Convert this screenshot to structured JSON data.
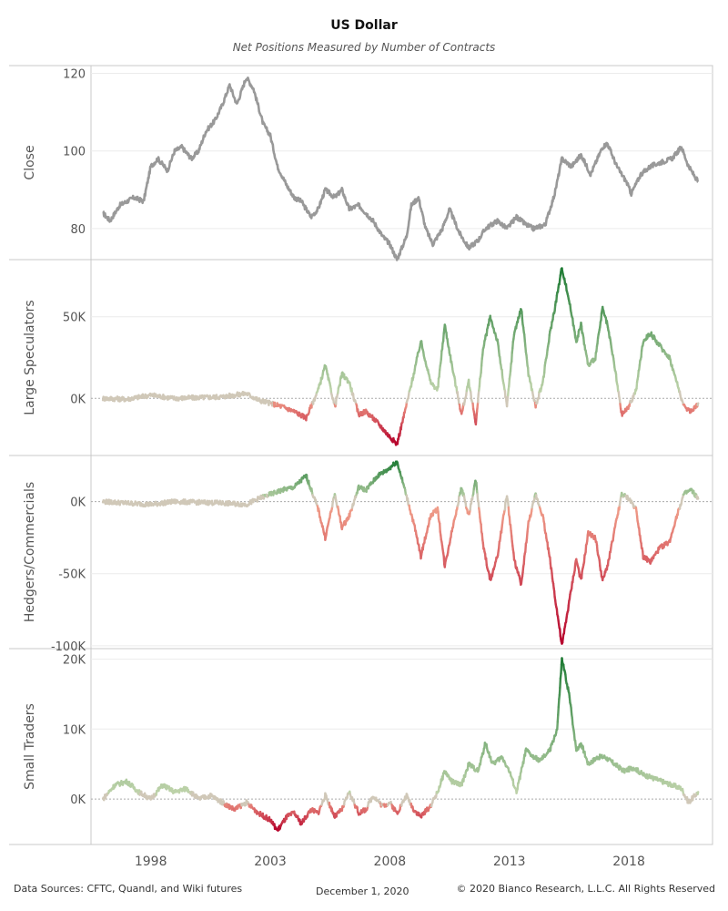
{
  "title": "US Dollar",
  "subtitle": "Net Positions Measured by Number of Contracts",
  "footer": {
    "sources": "Data Sources: CFTC, Quandl, and Wiki futures",
    "date": "December 1, 2020",
    "copyright": "© 2020 Bianco Research, L.L.C. All Rights Reserved"
  },
  "colors": {
    "close_line": "#999999",
    "positive_light": "#c6d7b0",
    "positive_dark": "#1e7b34",
    "negative_light": "#f2a48d",
    "negative_dark": "#b5002a",
    "neutral": "#d0c8b8"
  },
  "chart_data": {
    "type": "line",
    "x_ticks": [
      "1998",
      "2003",
      "2008",
      "2013",
      "2018"
    ],
    "x_range": [
      1995.5,
      2021.5
    ],
    "panels": [
      {
        "ylabel": "Close",
        "ylim": [
          72,
          122
        ],
        "yticks": [
          {
            "v": 80,
            "label": "80"
          },
          {
            "v": 100,
            "label": "100"
          },
          {
            "v": 120,
            "label": "120"
          }
        ],
        "colormode": "solid",
        "series": [
          [
            1996.0,
            84
          ],
          [
            1996.3,
            82
          ],
          [
            1996.7,
            86
          ],
          [
            1997.0,
            87
          ],
          [
            1997.3,
            88
          ],
          [
            1997.7,
            87
          ],
          [
            1998.0,
            96
          ],
          [
            1998.3,
            98
          ],
          [
            1998.7,
            95
          ],
          [
            1999.0,
            100
          ],
          [
            1999.3,
            101
          ],
          [
            1999.7,
            98
          ],
          [
            2000.0,
            100
          ],
          [
            2000.3,
            105
          ],
          [
            2000.7,
            108
          ],
          [
            2001.0,
            112
          ],
          [
            2001.3,
            117
          ],
          [
            2001.6,
            112
          ],
          [
            2002.0,
            119
          ],
          [
            2002.3,
            116
          ],
          [
            2002.7,
            107
          ],
          [
            2003.0,
            104
          ],
          [
            2003.3,
            96
          ],
          [
            2003.7,
            91
          ],
          [
            2004.0,
            88
          ],
          [
            2004.3,
            87
          ],
          [
            2004.7,
            83
          ],
          [
            2005.0,
            85
          ],
          [
            2005.3,
            90
          ],
          [
            2005.7,
            88
          ],
          [
            2006.0,
            90
          ],
          [
            2006.3,
            85
          ],
          [
            2006.7,
            86
          ],
          [
            2007.0,
            84
          ],
          [
            2007.3,
            82
          ],
          [
            2007.7,
            78
          ],
          [
            2008.0,
            76
          ],
          [
            2008.3,
            72
          ],
          [
            2008.7,
            78
          ],
          [
            2008.9,
            86
          ],
          [
            2009.2,
            88
          ],
          [
            2009.5,
            80
          ],
          [
            2009.8,
            76
          ],
          [
            2010.2,
            80
          ],
          [
            2010.5,
            85
          ],
          [
            2010.9,
            79
          ],
          [
            2011.3,
            75
          ],
          [
            2011.7,
            77
          ],
          [
            2012.0,
            80
          ],
          [
            2012.5,
            82
          ],
          [
            2012.9,
            80
          ],
          [
            2013.3,
            83
          ],
          [
            2013.7,
            81
          ],
          [
            2014.0,
            80
          ],
          [
            2014.5,
            81
          ],
          [
            2014.9,
            89
          ],
          [
            2015.2,
            98
          ],
          [
            2015.6,
            96
          ],
          [
            2016.0,
            99
          ],
          [
            2016.4,
            94
          ],
          [
            2016.9,
            101
          ],
          [
            2017.1,
            102
          ],
          [
            2017.5,
            96
          ],
          [
            2017.9,
            92
          ],
          [
            2018.1,
            89
          ],
          [
            2018.5,
            94
          ],
          [
            2018.9,
            96
          ],
          [
            2019.3,
            97
          ],
          [
            2019.8,
            98
          ],
          [
            2020.2,
            101
          ],
          [
            2020.5,
            96
          ],
          [
            2020.9,
            92
          ]
        ]
      },
      {
        "ylabel": "Large Speculators",
        "ylim": [
          -35000,
          85000
        ],
        "yticks": [
          {
            "v": 0,
            "label": "0K"
          },
          {
            "v": 50000,
            "label": "50K"
          }
        ],
        "colormode": "diverging",
        "series": [
          [
            1996.0,
            0
          ],
          [
            1997.0,
            -500
          ],
          [
            1998.0,
            2000
          ],
          [
            1999.0,
            0
          ],
          [
            2000.0,
            500
          ],
          [
            2001.0,
            1000
          ],
          [
            2002.0,
            3000
          ],
          [
            2002.5,
            -1000
          ],
          [
            2003.0,
            -3000
          ],
          [
            2003.5,
            -5000
          ],
          [
            2004.0,
            -8000
          ],
          [
            2004.5,
            -12000
          ],
          [
            2005.0,
            5000
          ],
          [
            2005.3,
            20000
          ],
          [
            2005.7,
            -5000
          ],
          [
            2006.0,
            15000
          ],
          [
            2006.3,
            10000
          ],
          [
            2006.7,
            -10000
          ],
          [
            2007.0,
            -8000
          ],
          [
            2007.5,
            -15000
          ],
          [
            2007.9,
            -22000
          ],
          [
            2008.3,
            -28000
          ],
          [
            2008.6,
            -10000
          ],
          [
            2009.0,
            15000
          ],
          [
            2009.3,
            35000
          ],
          [
            2009.7,
            10000
          ],
          [
            2010.0,
            5000
          ],
          [
            2010.3,
            45000
          ],
          [
            2010.6,
            20000
          ],
          [
            2011.0,
            -10000
          ],
          [
            2011.3,
            10000
          ],
          [
            2011.6,
            -15000
          ],
          [
            2011.9,
            30000
          ],
          [
            2012.2,
            50000
          ],
          [
            2012.5,
            35000
          ],
          [
            2012.9,
            -5000
          ],
          [
            2013.2,
            40000
          ],
          [
            2013.5,
            55000
          ],
          [
            2013.8,
            15000
          ],
          [
            2014.1,
            -5000
          ],
          [
            2014.4,
            10000
          ],
          [
            2014.7,
            40000
          ],
          [
            2014.9,
            55000
          ],
          [
            2015.2,
            80000
          ],
          [
            2015.5,
            60000
          ],
          [
            2015.8,
            35000
          ],
          [
            2016.0,
            45000
          ],
          [
            2016.3,
            20000
          ],
          [
            2016.6,
            25000
          ],
          [
            2016.9,
            55000
          ],
          [
            2017.1,
            45000
          ],
          [
            2017.4,
            20000
          ],
          [
            2017.7,
            -10000
          ],
          [
            2018.0,
            -5000
          ],
          [
            2018.3,
            5000
          ],
          [
            2018.6,
            35000
          ],
          [
            2018.9,
            40000
          ],
          [
            2019.3,
            32000
          ],
          [
            2019.7,
            25000
          ],
          [
            2020.0,
            10000
          ],
          [
            2020.3,
            -5000
          ],
          [
            2020.6,
            -8000
          ],
          [
            2020.9,
            -3000
          ]
        ]
      },
      {
        "ylabel": "Hedgers/Commercials",
        "ylim": [
          -102000,
          32000
        ],
        "yticks": [
          {
            "v": -100000,
            "label": "-100K"
          },
          {
            "v": -50000,
            "label": "-50K"
          },
          {
            "v": 0,
            "label": "0K"
          }
        ],
        "colormode": "diverging",
        "series": [
          [
            1996.0,
            0
          ],
          [
            1997.0,
            -1000
          ],
          [
            1998.0,
            -2000
          ],
          [
            1999.0,
            0
          ],
          [
            2000.0,
            -500
          ],
          [
            2001.0,
            -1000
          ],
          [
            2002.0,
            -2000
          ],
          [
            2002.5,
            2000
          ],
          [
            2003.0,
            5000
          ],
          [
            2003.5,
            8000
          ],
          [
            2004.0,
            10000
          ],
          [
            2004.5,
            18000
          ],
          [
            2005.0,
            -5000
          ],
          [
            2005.3,
            -25000
          ],
          [
            2005.7,
            5000
          ],
          [
            2006.0,
            -18000
          ],
          [
            2006.3,
            -10000
          ],
          [
            2006.7,
            10000
          ],
          [
            2007.0,
            8000
          ],
          [
            2007.5,
            18000
          ],
          [
            2007.9,
            22000
          ],
          [
            2008.3,
            28000
          ],
          [
            2008.6,
            10000
          ],
          [
            2009.0,
            -15000
          ],
          [
            2009.3,
            -38000
          ],
          [
            2009.7,
            -10000
          ],
          [
            2010.0,
            -5000
          ],
          [
            2010.3,
            -45000
          ],
          [
            2010.6,
            -20000
          ],
          [
            2011.0,
            10000
          ],
          [
            2011.3,
            -10000
          ],
          [
            2011.6,
            15000
          ],
          [
            2011.9,
            -30000
          ],
          [
            2012.2,
            -55000
          ],
          [
            2012.5,
            -38000
          ],
          [
            2012.9,
            5000
          ],
          [
            2013.2,
            -40000
          ],
          [
            2013.5,
            -58000
          ],
          [
            2013.8,
            -15000
          ],
          [
            2014.1,
            5000
          ],
          [
            2014.4,
            -10000
          ],
          [
            2014.7,
            -40000
          ],
          [
            2014.9,
            -65000
          ],
          [
            2015.2,
            -100000
          ],
          [
            2015.5,
            -70000
          ],
          [
            2015.8,
            -40000
          ],
          [
            2016.0,
            -55000
          ],
          [
            2016.3,
            -22000
          ],
          [
            2016.6,
            -25000
          ],
          [
            2016.9,
            -55000
          ],
          [
            2017.1,
            -45000
          ],
          [
            2017.4,
            -20000
          ],
          [
            2017.7,
            5000
          ],
          [
            2018.0,
            2000
          ],
          [
            2018.3,
            -5000
          ],
          [
            2018.6,
            -38000
          ],
          [
            2018.9,
            -42000
          ],
          [
            2019.3,
            -32000
          ],
          [
            2019.7,
            -28000
          ],
          [
            2020.0,
            -10000
          ],
          [
            2020.3,
            5000
          ],
          [
            2020.6,
            8000
          ],
          [
            2020.9,
            2000
          ]
        ]
      },
      {
        "ylabel": "Small Traders",
        "ylim": [
          -6500,
          21500
        ],
        "yticks": [
          {
            "v": 0,
            "label": "0K"
          },
          {
            "v": 10000,
            "label": "10K"
          },
          {
            "v": 20000,
            "label": "20K"
          }
        ],
        "colormode": "diverging",
        "series": [
          [
            1996.0,
            0
          ],
          [
            1996.5,
            2000
          ],
          [
            1997.0,
            2500
          ],
          [
            1997.5,
            1000
          ],
          [
            1998.0,
            0
          ],
          [
            1998.5,
            2000
          ],
          [
            1999.0,
            1000
          ],
          [
            1999.5,
            1500
          ],
          [
            2000.0,
            0
          ],
          [
            2000.5,
            500
          ],
          [
            2001.0,
            -500
          ],
          [
            2001.5,
            -1500
          ],
          [
            2002.0,
            -500
          ],
          [
            2002.5,
            -2000
          ],
          [
            2003.0,
            -3000
          ],
          [
            2003.3,
            -4500
          ],
          [
            2003.7,
            -2500
          ],
          [
            2004.0,
            -2000
          ],
          [
            2004.3,
            -3500
          ],
          [
            2004.7,
            -1500
          ],
          [
            2005.0,
            -2000
          ],
          [
            2005.3,
            500
          ],
          [
            2005.7,
            -2500
          ],
          [
            2006.0,
            -1500
          ],
          [
            2006.3,
            1000
          ],
          [
            2006.7,
            -2000
          ],
          [
            2007.0,
            -1500
          ],
          [
            2007.3,
            500
          ],
          [
            2007.7,
            -1000
          ],
          [
            2008.0,
            -500
          ],
          [
            2008.3,
            -2000
          ],
          [
            2008.7,
            500
          ],
          [
            2009.0,
            -1500
          ],
          [
            2009.3,
            -2500
          ],
          [
            2009.7,
            -1000
          ],
          [
            2010.0,
            1000
          ],
          [
            2010.3,
            4000
          ],
          [
            2010.6,
            2500
          ],
          [
            2011.0,
            2000
          ],
          [
            2011.3,
            5000
          ],
          [
            2011.7,
            4000
          ],
          [
            2012.0,
            8000
          ],
          [
            2012.3,
            5000
          ],
          [
            2012.7,
            6000
          ],
          [
            2013.0,
            4000
          ],
          [
            2013.3,
            1000
          ],
          [
            2013.7,
            7000
          ],
          [
            2014.0,
            6000
          ],
          [
            2014.3,
            5500
          ],
          [
            2014.7,
            7000
          ],
          [
            2015.0,
            10000
          ],
          [
            2015.2,
            20000
          ],
          [
            2015.5,
            15000
          ],
          [
            2015.8,
            7000
          ],
          [
            2016.0,
            8000
          ],
          [
            2016.3,
            5000
          ],
          [
            2016.7,
            6000
          ],
          [
            2017.0,
            6000
          ],
          [
            2017.4,
            5000
          ],
          [
            2017.8,
            4000
          ],
          [
            2018.2,
            4500
          ],
          [
            2018.6,
            3500
          ],
          [
            2019.0,
            3000
          ],
          [
            2019.4,
            2500
          ],
          [
            2019.8,
            2000
          ],
          [
            2020.2,
            1500
          ],
          [
            2020.5,
            -500
          ],
          [
            2020.9,
            1000
          ]
        ]
      }
    ]
  }
}
